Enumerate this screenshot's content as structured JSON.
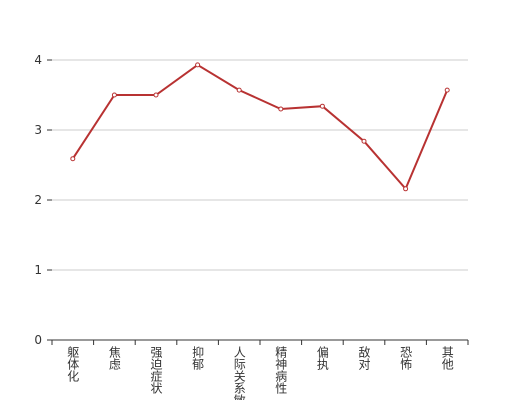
{
  "chart_data": {
    "type": "line",
    "categories": [
      "躯体化",
      "焦虑",
      "强迫症状",
      "抑郁",
      "人际关系敏感",
      "精神病性",
      "偏执",
      "敌对",
      "恐怖",
      "其他"
    ],
    "values": [
      2.59,
      3.5,
      3.5,
      3.93,
      3.57,
      3.3,
      3.34,
      2.84,
      2.16,
      3.57
    ],
    "color": "#b83232",
    "ylim": [
      0,
      4
    ],
    "yticks": [
      0,
      1,
      2,
      3,
      4
    ],
    "grid": true
  }
}
